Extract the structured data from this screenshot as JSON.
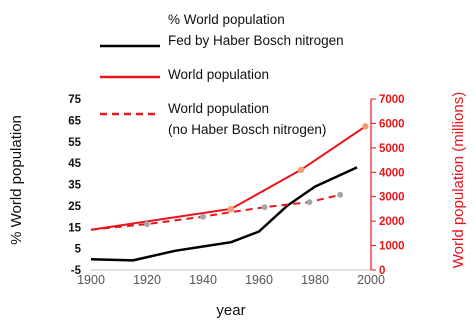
{
  "chart_data": {
    "type": "line",
    "xlabel": "year",
    "ylabel_left": "% World population",
    "ylabel_right": "World population (millions)",
    "xlim": [
      1900,
      2000
    ],
    "ylim_left": [
      -5,
      75
    ],
    "ylim_right": [
      0,
      7000
    ],
    "x_ticks": [
      "1900",
      "1920",
      "1940",
      "1960",
      "1980",
      "2000"
    ],
    "y_ticks_left": [
      "75",
      "65",
      "55",
      "45",
      "35",
      "25",
      "15",
      "5",
      "-5"
    ],
    "y_ticks_right": [
      "7000",
      "6000",
      "5000",
      "4000",
      "3000",
      "2000",
      "1000",
      "0"
    ],
    "grid": false,
    "legend_position": "top",
    "series": [
      {
        "name": "% World population Fed by Haber Bosch nitrogen",
        "axis": "left",
        "style": "solid",
        "color": "#000000",
        "x": [
          1900,
          1915,
          1930,
          1940,
          1950,
          1960,
          1970,
          1980,
          1995
        ],
        "y": [
          0,
          -0.5,
          4,
          6,
          8,
          13,
          25,
          34,
          43
        ]
      },
      {
        "name": "World population",
        "axis": "right",
        "style": "solid",
        "color": "#e8151b",
        "x": [
          1900,
          1950,
          1975,
          1998
        ],
        "y": [
          1650,
          2500,
          4100,
          5880
        ]
      },
      {
        "name": "World population (no Haber Bosch nitrogen)",
        "axis": "right",
        "style": "dashed",
        "color": "#e8151b",
        "x": [
          1900,
          1920,
          1940,
          1950,
          1962,
          1978,
          1989
        ],
        "y": [
          1650,
          1880,
          2180,
          2370,
          2570,
          2780,
          3080
        ]
      }
    ],
    "marker_color": "#a6a6a6"
  }
}
